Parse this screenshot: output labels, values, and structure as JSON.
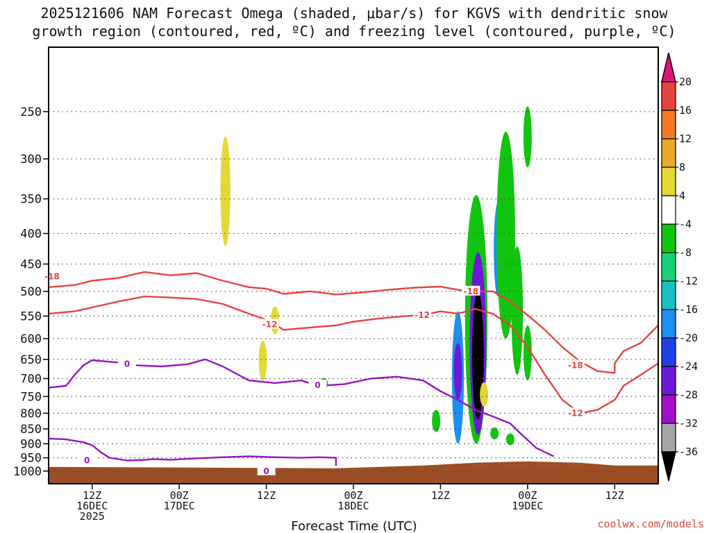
{
  "chart_data": {
    "type": "heatmap",
    "title": "2025121606 NAM Forecast Omega (shaded, μbar/s) for KGVS with dendritic snow growth region (contoured, red, ºC) and freezing level (contoured, purple, ºC)",
    "title_lines": [
      "2025121606 NAM Forecast Omega (shaded, μbar/s) for KGVS with dendritic snow",
      "growth region (contoured, red, ºC) and freezing level (contoured, purple, ºC)"
    ],
    "xlabel": "Forecast Time (UTC)",
    "credit": "coolwx.com/models",
    "y_axis": {
      "log_scale": true,
      "ylim": [
        1050,
        195
      ],
      "ticks": [
        250,
        300,
        350,
        400,
        450,
        500,
        550,
        600,
        650,
        700,
        750,
        800,
        850,
        900,
        950,
        1000
      ]
    },
    "x_axis": {
      "xlim": [
        -5,
        65
      ],
      "ticks": [
        {
          "t": 0,
          "lines": [
            "12Z",
            "16DEC",
            "2025"
          ]
        },
        {
          "t": 10,
          "lines": [
            "00Z",
            "17DEC"
          ]
        },
        {
          "t": 20,
          "lines": [
            "12Z"
          ]
        },
        {
          "t": 30,
          "lines": [
            "00Z",
            "18DEC"
          ]
        },
        {
          "t": 40,
          "lines": [
            "12Z"
          ]
        },
        {
          "t": 50,
          "lines": [
            "00Z",
            "19DEC"
          ]
        },
        {
          "t": 60,
          "lines": [
            "12Z"
          ]
        }
      ]
    },
    "grid": true,
    "colorbar": {
      "levels": [
        -36,
        -32,
        -28,
        -24,
        -20,
        -16,
        -12,
        -8,
        -4,
        4,
        8,
        12,
        16,
        20
      ],
      "labels": [
        "20",
        "16",
        "12",
        "8",
        "4",
        "-4",
        "-8",
        "-12",
        "-16",
        "-20",
        "-24",
        "-28",
        "-32",
        "-36"
      ],
      "colors": {
        "gt20": "#e0137a",
        "16_20": "#e8423e",
        "12_16": "#ef7b29",
        "8_12": "#e8a92e",
        "4_8": "#e4d836",
        "m4_4": "#ffffff",
        "m8_m4": "#11c40f",
        "m12_m8": "#15d177",
        "m16_m12": "#19c2c2",
        "m20_m16": "#1e8ef0",
        "m24_m20": "#2040e8",
        "m28_m24": "#6c1ad6",
        "m32_m28": "#a010c6",
        "m36_m32": "#a6a6a6",
        "lt36": "#000000"
      }
    },
    "terrain_color": "#9c4f24",
    "omega_features": [
      {
        "t": 15.3,
        "p_top": 275,
        "p_bot": 420,
        "color": "#e4d836"
      },
      {
        "t": 21.0,
        "p_top": 530,
        "p_bot": 590,
        "color": "#e4d836"
      },
      {
        "t": 19.6,
        "p_top": 605,
        "p_bot": 705,
        "color": "#e4d836"
      },
      {
        "t": 26.6,
        "p_top": 698,
        "p_bot": 730,
        "color": "#11c40f"
      },
      {
        "t": 39.5,
        "p_top": 790,
        "p_bot": 860,
        "color": "#11c40f"
      },
      {
        "t": 44.1,
        "p_top": 345,
        "p_bot": 900,
        "color": "#11c40f"
      },
      {
        "t": 44.3,
        "p_top": 430,
        "p_bot": 870,
        "color": "#6c1ad6"
      },
      {
        "t": 44.3,
        "p_top": 500,
        "p_bot": 820,
        "color": "#000000"
      },
      {
        "t": 42.0,
        "p_top": 540,
        "p_bot": 900,
        "color": "#1e8ef0"
      },
      {
        "t": 42.0,
        "p_top": 610,
        "p_bot": 760,
        "color": "#6c1ad6"
      },
      {
        "t": 46.6,
        "p_top": 355,
        "p_bot": 510,
        "color": "#1e8ef0"
      },
      {
        "t": 47.5,
        "p_top": 270,
        "p_bot": 600,
        "color": "#11c40f"
      },
      {
        "t": 45.0,
        "p_top": 710,
        "p_bot": 780,
        "color": "#e4d836"
      },
      {
        "t": 46.2,
        "p_top": 845,
        "p_bot": 885,
        "color": "#11c40f"
      },
      {
        "t": 48.0,
        "p_top": 865,
        "p_bot": 905,
        "color": "#11c40f"
      },
      {
        "t": 50.0,
        "p_top": 245,
        "p_bot": 310,
        "color": "#11c40f"
      },
      {
        "t": 48.8,
        "p_top": 420,
        "p_bot": 690,
        "color": "#11c40f"
      },
      {
        "t": 50.0,
        "p_top": 570,
        "p_bot": 705,
        "color": "#11c40f"
      }
    ],
    "contours": [
      {
        "name": "-18",
        "color": "#e8423e",
        "label": "-18",
        "labels_at": [
          [
            -4.6,
            472
          ],
          [
            43.5,
            500
          ],
          [
            55.5,
            665
          ]
        ],
        "points": [
          [
            -5,
            492
          ],
          [
            -2,
            488
          ],
          [
            0,
            480
          ],
          [
            3,
            475
          ],
          [
            6,
            464
          ],
          [
            9,
            470
          ],
          [
            12,
            466
          ],
          [
            15,
            480
          ],
          [
            18,
            492
          ],
          [
            20,
            495
          ],
          [
            22,
            505
          ],
          [
            25,
            500
          ],
          [
            28,
            506
          ],
          [
            31,
            502
          ],
          [
            34,
            497
          ],
          [
            37,
            493
          ],
          [
            40,
            491
          ],
          [
            43,
            500
          ],
          [
            46,
            500
          ],
          [
            48,
            520
          ],
          [
            50,
            548
          ],
          [
            52,
            580
          ],
          [
            54,
            620
          ],
          [
            56,
            655
          ],
          [
            58,
            680
          ],
          [
            60,
            685
          ],
          [
            60,
            660
          ],
          [
            61,
            630
          ],
          [
            63,
            610
          ],
          [
            65,
            570
          ]
        ]
      },
      {
        "name": "-12",
        "color": "#e8423e",
        "label": "-12",
        "labels_at": [
          [
            20.4,
            568
          ],
          [
            37.9,
            548
          ],
          [
            55.5,
            800
          ]
        ],
        "points": [
          [
            -5,
            545
          ],
          [
            -2,
            540
          ],
          [
            0,
            532
          ],
          [
            3,
            520
          ],
          [
            6,
            510
          ],
          [
            9,
            512
          ],
          [
            12,
            515
          ],
          [
            15,
            525
          ],
          [
            18,
            545
          ],
          [
            20,
            558
          ],
          [
            22,
            580
          ],
          [
            25,
            575
          ],
          [
            28,
            570
          ],
          [
            30,
            562
          ],
          [
            33,
            555
          ],
          [
            36,
            550
          ],
          [
            38,
            548
          ],
          [
            40,
            540
          ],
          [
            42,
            545
          ],
          [
            44,
            535
          ],
          [
            46,
            545
          ],
          [
            48,
            570
          ],
          [
            50,
            620
          ],
          [
            52,
            690
          ],
          [
            54,
            760
          ],
          [
            56,
            800
          ],
          [
            58,
            790
          ],
          [
            60,
            760
          ],
          [
            61,
            720
          ],
          [
            63,
            690
          ],
          [
            65,
            660
          ]
        ]
      },
      {
        "name": "0",
        "color": "#9a12c4",
        "label": "0",
        "labels_at": [
          [
            4.0,
            662
          ],
          [
            25.9,
            718
          ],
          [
            20.0,
            1000
          ],
          [
            -0.6,
            960
          ]
        ],
        "points": [
          [
            -5,
            725
          ],
          [
            -3,
            720
          ],
          [
            -2,
            690
          ],
          [
            -1,
            665
          ],
          [
            0,
            652
          ],
          [
            3,
            658
          ],
          [
            5,
            665
          ],
          [
            8,
            668
          ],
          [
            11,
            662
          ],
          [
            13,
            650
          ],
          [
            15,
            668
          ],
          [
            18,
            705
          ],
          [
            21,
            712
          ],
          [
            24,
            705
          ],
          [
            26,
            720
          ],
          [
            29,
            715
          ],
          [
            32,
            700
          ],
          [
            35,
            695
          ],
          [
            38,
            705
          ],
          [
            40,
            735
          ],
          [
            42,
            760
          ],
          [
            44,
            790
          ],
          [
            46,
            810
          ],
          [
            48,
            832
          ],
          [
            49,
            860
          ],
          [
            51,
            915
          ],
          [
            53,
            945
          ]
        ]
      },
      {
        "name": "0b",
        "color": "#9a12c4",
        "label": "",
        "labels_at": [],
        "points": [
          [
            -5,
            882
          ],
          [
            -3,
            885
          ],
          [
            -1,
            895
          ],
          [
            0,
            905
          ],
          [
            1,
            930
          ],
          [
            2,
            950
          ],
          [
            4,
            960
          ],
          [
            6,
            958
          ],
          [
            7,
            955
          ],
          [
            9,
            957
          ],
          [
            12,
            952
          ],
          [
            15,
            948
          ],
          [
            18,
            945
          ],
          [
            21,
            948
          ],
          [
            24,
            950
          ],
          [
            26,
            948
          ],
          [
            28,
            950
          ],
          [
            28,
            980
          ]
        ]
      }
    ]
  }
}
